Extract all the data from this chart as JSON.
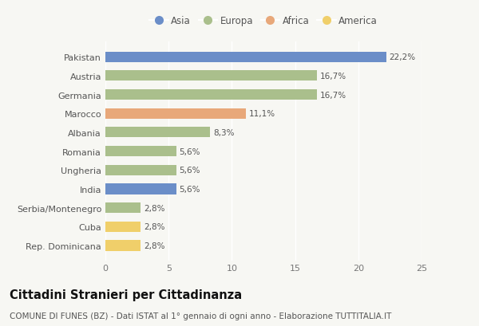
{
  "categories": [
    "Pakistan",
    "Austria",
    "Germania",
    "Marocco",
    "Albania",
    "Romania",
    "Ungheria",
    "India",
    "Serbia/Montenegro",
    "Cuba",
    "Rep. Dominicana"
  ],
  "values": [
    22.2,
    16.7,
    16.7,
    11.1,
    8.3,
    5.6,
    5.6,
    5.6,
    2.8,
    2.8,
    2.8
  ],
  "labels": [
    "22,2%",
    "16,7%",
    "16,7%",
    "11,1%",
    "8,3%",
    "5,6%",
    "5,6%",
    "5,6%",
    "2,8%",
    "2,8%",
    "2,8%"
  ],
  "continents": [
    "Asia",
    "Europa",
    "Europa",
    "Africa",
    "Europa",
    "Europa",
    "Europa",
    "Asia",
    "Europa",
    "America",
    "America"
  ],
  "colors": {
    "Asia": "#6b8ec8",
    "Europa": "#aabf8c",
    "Africa": "#e8a87a",
    "America": "#f0cf6a"
  },
  "legend_order": [
    "Asia",
    "Europa",
    "Africa",
    "America"
  ],
  "xlim": [
    0,
    25
  ],
  "xticks": [
    0,
    5,
    10,
    15,
    20,
    25
  ],
  "title": "Cittadini Stranieri per Cittadinanza",
  "subtitle": "COMUNE DI FUNES (BZ) - Dati ISTAT al 1° gennaio di ogni anno - Elaborazione TUTTITALIA.IT",
  "background_color": "#f7f7f3",
  "bar_height": 0.55,
  "title_fontsize": 10.5,
  "subtitle_fontsize": 7.5,
  "tick_fontsize": 8,
  "label_fontsize": 7.5,
  "legend_fontsize": 8.5
}
